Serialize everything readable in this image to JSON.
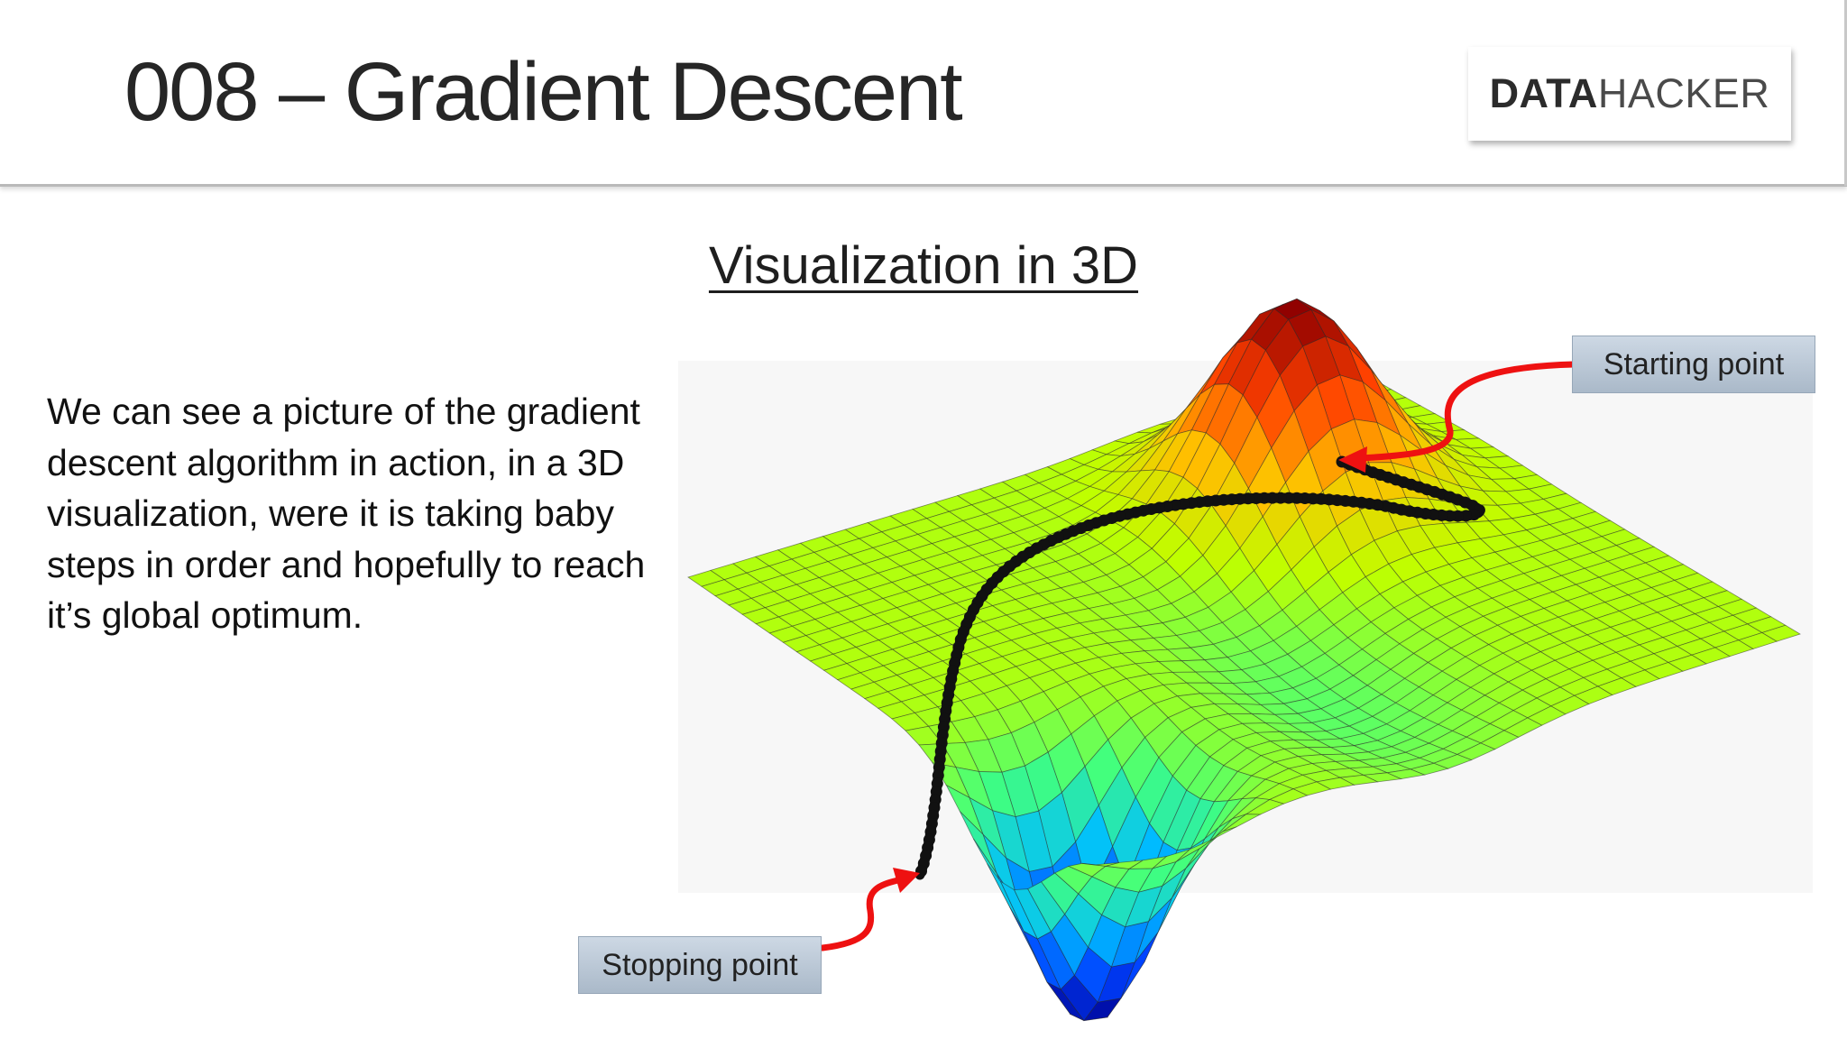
{
  "slide": {
    "title": "008 – Gradient Descent",
    "logo": {
      "bold": "DATA",
      "light": "HACKER"
    },
    "subtitle": "Visualization in 3D",
    "body": "We can see a picture of the gradient descent algorithm in action, in a 3D visualization, were it is taking baby steps in order and hopefully to reach it’s global optimum.",
    "callouts": {
      "start": "Starting point",
      "stop": "Stopping point"
    }
  },
  "figure": {
    "colormap": [
      "#00008f",
      "#0040ff",
      "#00bfff",
      "#40ff80",
      "#bfff00",
      "#ffbf00",
      "#ff4000",
      "#8f0000"
    ],
    "path_color": "#111111",
    "arrow_color": "#ee1111"
  }
}
